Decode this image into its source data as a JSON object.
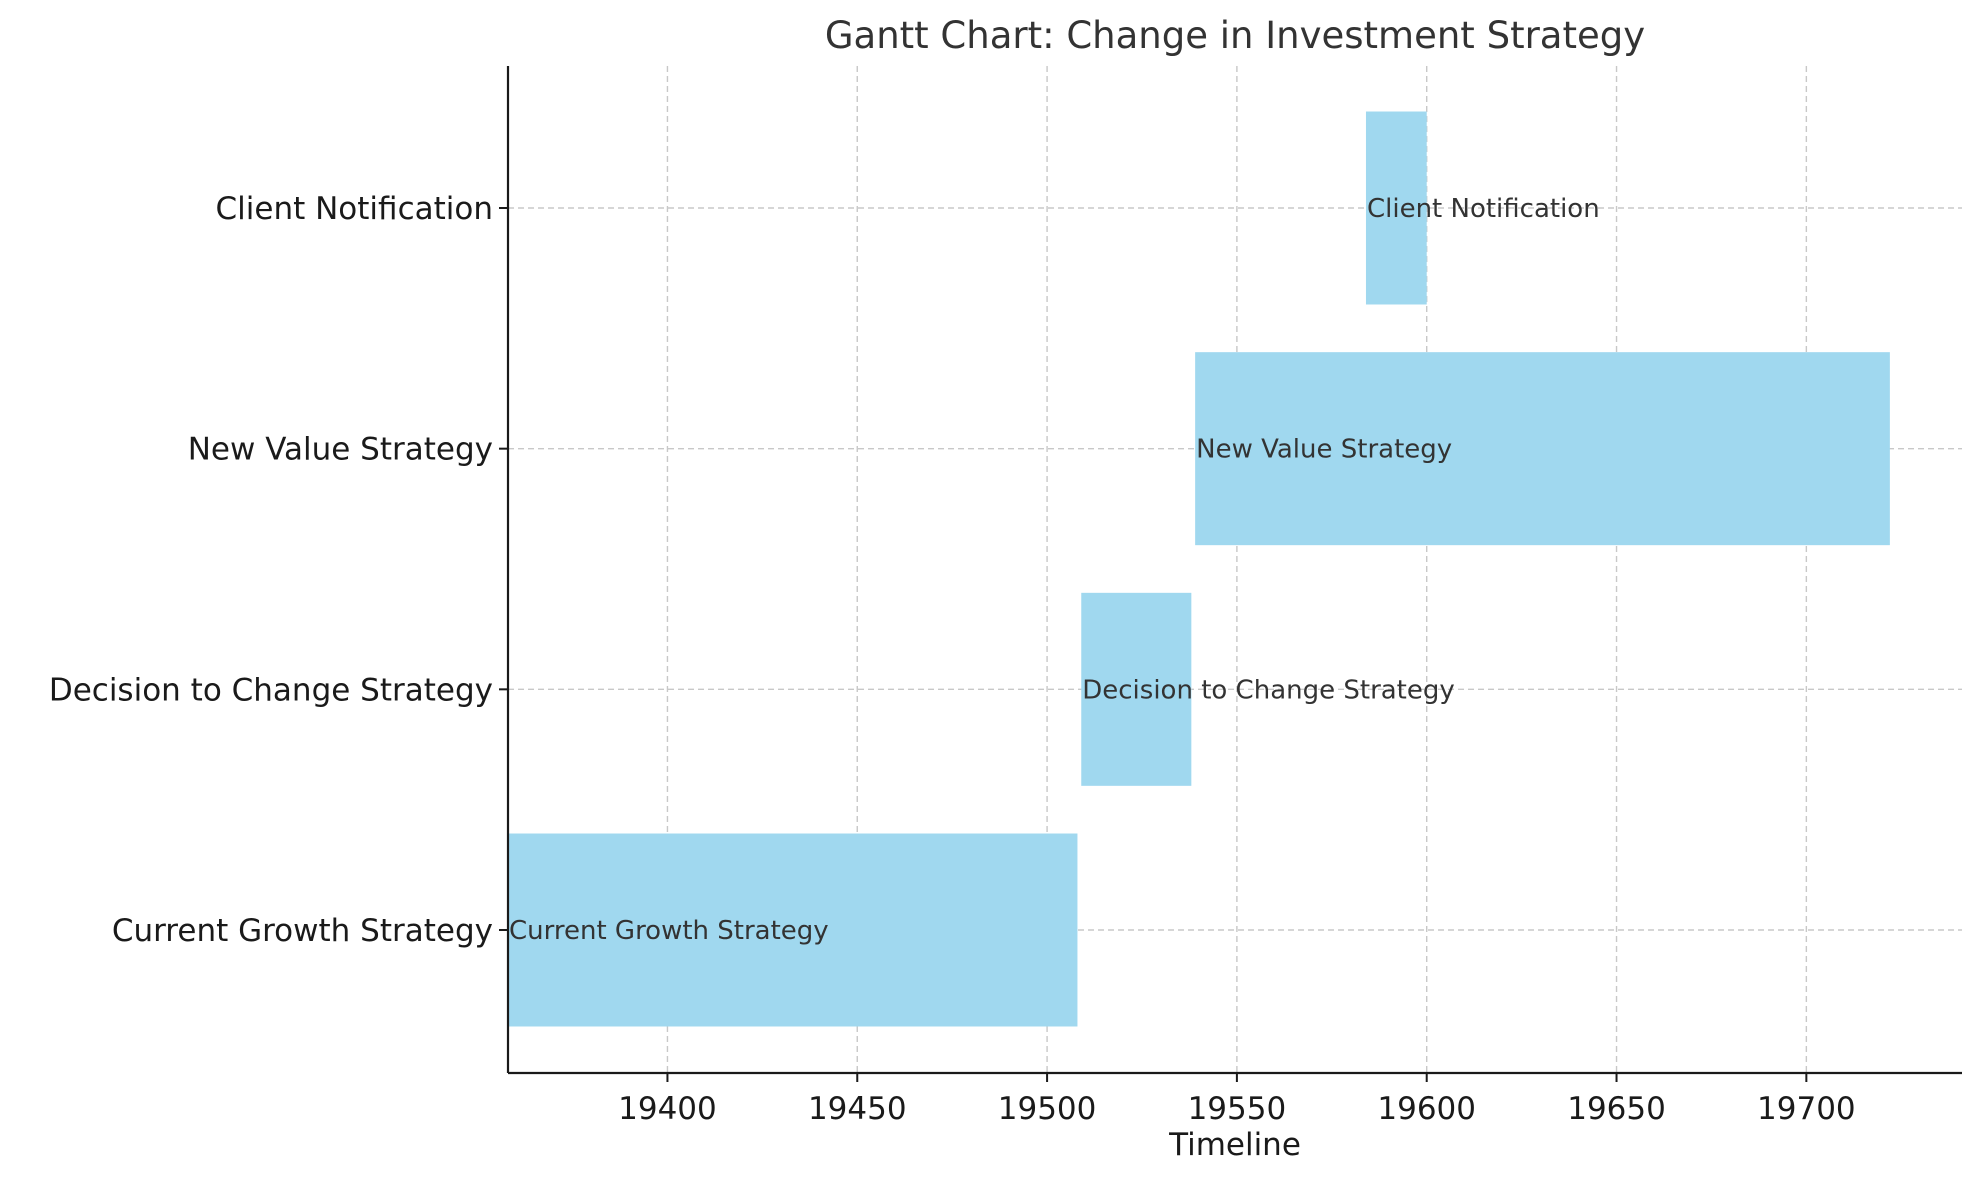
{
  "chart_data": {
    "type": "gantt",
    "title": "Gantt Chart: Change in Investment Strategy",
    "xlabel": "Timeline",
    "ylabel": "",
    "xlim": [
      19358,
      19741
    ],
    "x_ticks": [
      19400,
      19450,
      19500,
      19550,
      19600,
      19650,
      19700
    ],
    "grid": true,
    "bar_color": "#a0d8ef",
    "tasks": [
      {
        "name": "Current Growth Strategy",
        "start": 19358,
        "end": 19508
      },
      {
        "name": "Decision to Change Strategy",
        "start": 19509,
        "end": 19538
      },
      {
        "name": "New Value Strategy",
        "start": 19539,
        "end": 19722
      },
      {
        "name": "Client Notification",
        "start": 19584,
        "end": 19600
      }
    ]
  }
}
